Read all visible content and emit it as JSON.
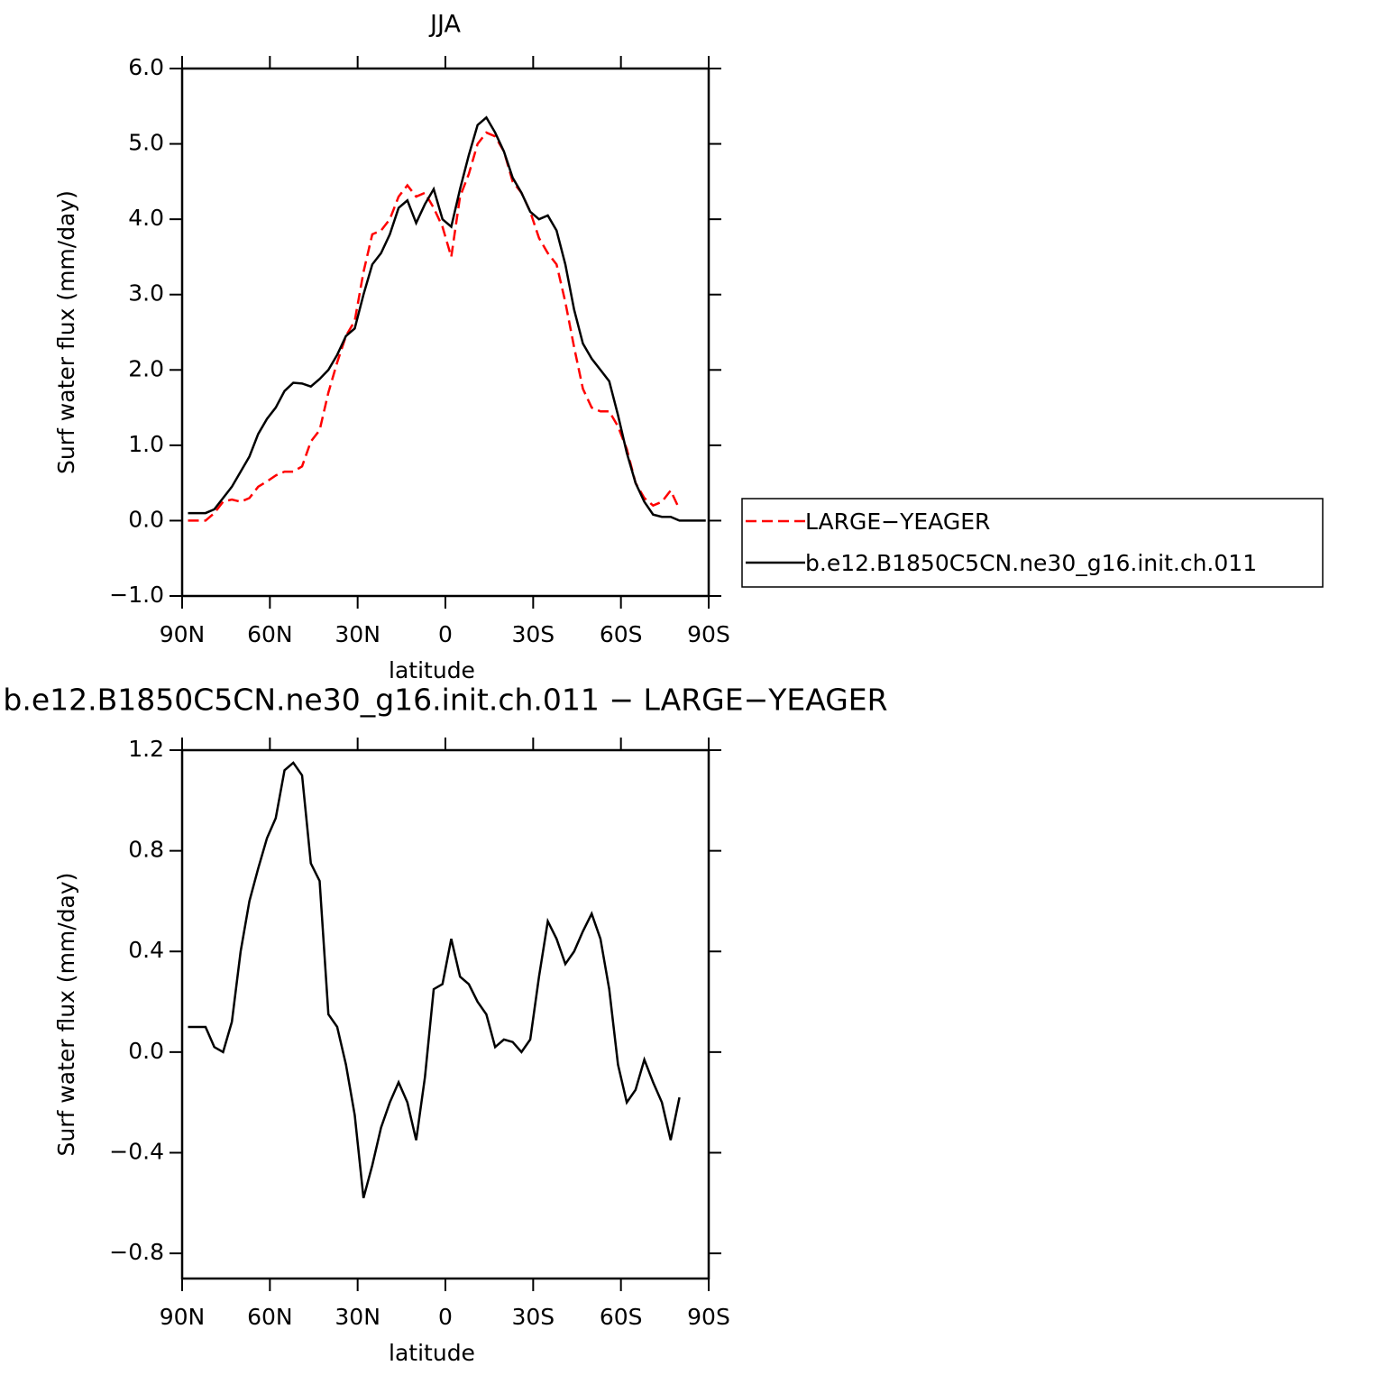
{
  "chart_data": [
    {
      "type": "line",
      "title": "JJA",
      "xlabel": "latitude",
      "ylabel": "Surf water flux (mm/day)",
      "x": [
        88,
        85,
        82,
        79,
        76,
        73,
        70,
        67,
        64,
        61,
        58,
        55,
        52,
        49,
        46,
        43,
        40,
        37,
        34,
        31,
        28,
        25,
        22,
        19,
        16,
        13,
        10,
        7,
        4,
        1,
        -2,
        -5,
        -8,
        -11,
        -14,
        -17,
        -20,
        -23,
        -26,
        -29,
        -32,
        -35,
        -38,
        -41,
        -44,
        -47,
        -50,
        -53,
        -56,
        -59,
        -62,
        -65,
        -68,
        -71,
        -74,
        -77,
        -80,
        -83,
        -86,
        -89
      ],
      "series": [
        {
          "name": "LARGE−YEAGER",
          "color": "#ff0000",
          "dashed": true,
          "values": [
            0.0,
            0.0,
            0.0,
            0.1,
            0.25,
            0.28,
            0.25,
            0.3,
            0.45,
            0.52,
            0.6,
            0.65,
            0.65,
            0.72,
            1.05,
            1.2,
            1.7,
            2.1,
            2.45,
            2.65,
            3.3,
            3.8,
            3.85,
            4.0,
            4.3,
            4.45,
            4.3,
            4.35,
            4.15,
            3.9,
            3.5,
            4.3,
            4.6,
            5.0,
            5.15,
            5.1,
            4.9,
            4.5,
            4.35,
            4.1,
            3.75,
            3.55,
            3.4,
            2.9,
            2.3,
            1.75,
            1.5,
            1.45,
            1.45,
            1.25,
            0.95,
            0.5,
            0.3,
            0.2,
            0.25,
            0.4,
            0.15,
            null,
            null,
            null
          ]
        },
        {
          "name": "b.e12.B1850C5CN.ne30_g16.init.ch.011",
          "color": "#000000",
          "dashed": false,
          "values": [
            0.1,
            0.1,
            0.1,
            0.15,
            0.3,
            0.45,
            0.65,
            0.85,
            1.15,
            1.35,
            1.5,
            1.72,
            1.83,
            1.82,
            1.78,
            1.88,
            2.0,
            2.2,
            2.45,
            2.55,
            3.0,
            3.4,
            3.55,
            3.8,
            4.15,
            4.25,
            3.95,
            4.2,
            4.4,
            4.0,
            3.9,
            4.4,
            4.85,
            5.25,
            5.35,
            5.15,
            4.9,
            4.55,
            4.35,
            4.1,
            4.0,
            4.05,
            3.85,
            3.4,
            2.8,
            2.35,
            2.15,
            2.0,
            1.85,
            1.4,
            0.9,
            0.5,
            0.25,
            0.08,
            0.05,
            0.05,
            0.0,
            0.0,
            0.0,
            0.0
          ]
        }
      ],
      "xlim": [
        90,
        -90
      ],
      "xticks": [
        {
          "value": 90,
          "label": "90N"
        },
        {
          "value": 60,
          "label": "60N"
        },
        {
          "value": 30,
          "label": "30N"
        },
        0,
        {
          "value": -30,
          "label": "30S"
        },
        {
          "value": -60,
          "label": "60S"
        },
        {
          "value": -90,
          "label": "90S"
        }
      ],
      "ylim": [
        -1,
        6
      ],
      "yticks": [
        {
          "value": -1,
          "label": "−1.0"
        },
        {
          "value": 0,
          "label": "0.0"
        },
        {
          "value": 1,
          "label": "1.0"
        },
        {
          "value": 2,
          "label": "2.0"
        },
        {
          "value": 3,
          "label": "3.0"
        },
        {
          "value": 4,
          "label": "4.0"
        },
        {
          "value": 5,
          "label": "5.0"
        },
        {
          "value": 6,
          "label": "6.0"
        }
      ],
      "legend": "right"
    },
    {
      "type": "line",
      "title": "b.e12.B1850C5CN.ne30_g16.init.ch.011 − LARGE−YEAGER",
      "xlabel": "latitude",
      "ylabel": "Surf water flux (mm/day)",
      "x": [
        88,
        85,
        82,
        79,
        76,
        73,
        70,
        67,
        64,
        61,
        58,
        55,
        52,
        49,
        46,
        43,
        40,
        37,
        34,
        31,
        28,
        25,
        22,
        19,
        16,
        13,
        10,
        7,
        4,
        1,
        -2,
        -5,
        -8,
        -11,
        -14,
        -17,
        -20,
        -23,
        -26,
        -29,
        -32,
        -35,
        -38,
        -41,
        -44,
        -47,
        -50,
        -53,
        -56,
        -59,
        -62,
        -65,
        -68,
        -71,
        -74,
        -77,
        -80,
        -83,
        -86,
        -89
      ],
      "series": [
        {
          "color": "#000000",
          "dashed": false,
          "values": [
            0.1,
            0.1,
            0.1,
            0.02,
            0.0,
            0.12,
            0.4,
            0.6,
            0.73,
            0.85,
            0.93,
            1.12,
            1.15,
            1.1,
            0.75,
            0.68,
            0.15,
            0.1,
            -0.05,
            -0.25,
            -0.58,
            -0.45,
            -0.3,
            -0.2,
            -0.12,
            -0.2,
            -0.35,
            -0.1,
            0.25,
            0.27,
            0.45,
            0.3,
            0.27,
            0.2,
            0.15,
            0.02,
            0.05,
            0.04,
            0.0,
            0.05,
            0.3,
            0.52,
            0.45,
            0.35,
            0.4,
            0.48,
            0.55,
            0.45,
            0.25,
            -0.05,
            -0.2,
            -0.15,
            -0.03,
            -0.12,
            -0.2,
            -0.35,
            -0.18,
            null,
            null,
            null
          ]
        }
      ],
      "xlim": [
        90,
        -90
      ],
      "xticks": [
        {
          "value": 90,
          "label": "90N"
        },
        {
          "value": 60,
          "label": "60N"
        },
        {
          "value": 30,
          "label": "30N"
        },
        0,
        {
          "value": -30,
          "label": "30S"
        },
        {
          "value": -60,
          "label": "60S"
        },
        {
          "value": -90,
          "label": "90S"
        }
      ],
      "ylim": [
        -0.9,
        1.2
      ],
      "yticks": [
        {
          "value": -0.8,
          "label": "−0.8"
        },
        {
          "value": -0.4,
          "label": "−0.4"
        },
        {
          "value": 0,
          "label": "0.0"
        },
        {
          "value": 0.4,
          "label": "0.4"
        },
        {
          "value": 0.8,
          "label": "0.8"
        },
        {
          "value": 1.2,
          "label": "1.2"
        }
      ]
    }
  ]
}
